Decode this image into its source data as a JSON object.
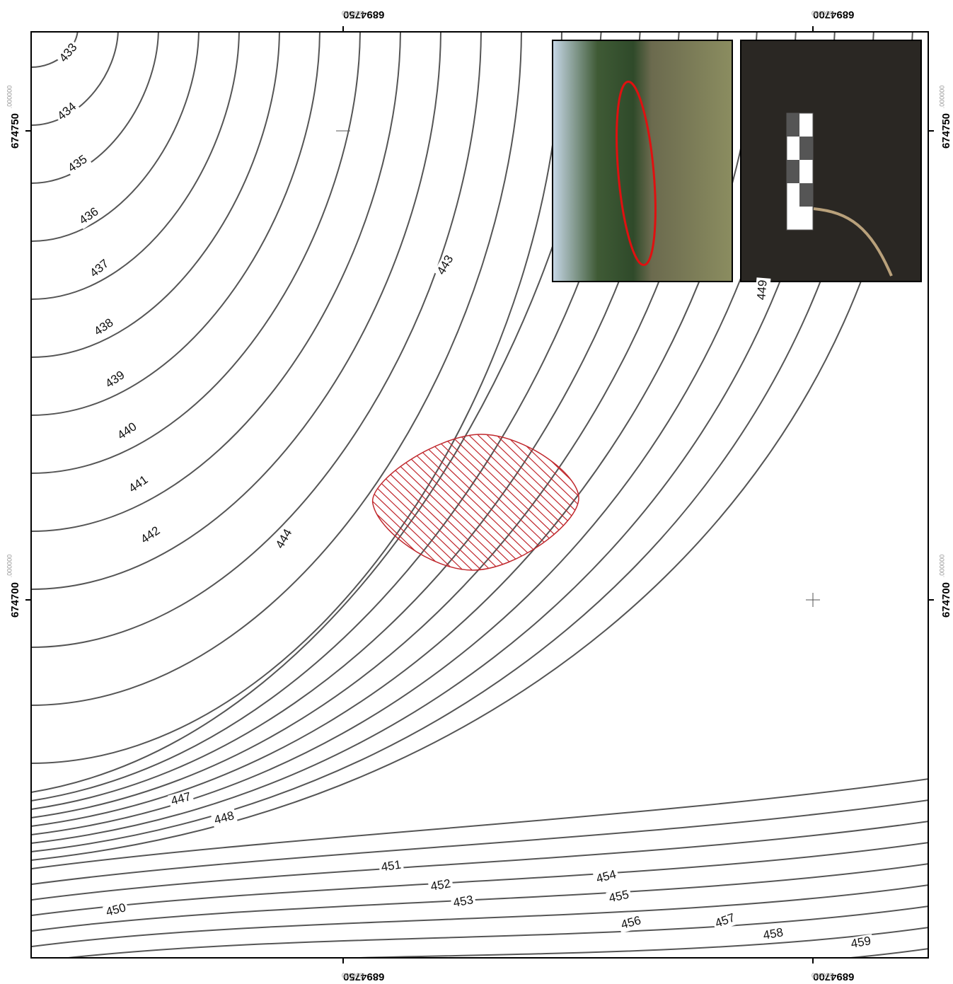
{
  "map": {
    "x_coords": [
      {
        "main": "6894750",
        "decimals": ".000000"
      },
      {
        "main": "6894700",
        "decimals": ".000000"
      }
    ],
    "y_coords": [
      {
        "main": "674750",
        "decimals": ".000000"
      },
      {
        "main": "674700",
        "decimals": ".000000"
      }
    ],
    "contour_labels": [
      "433",
      "434",
      "435",
      "436",
      "437",
      "438",
      "439",
      "440",
      "441",
      "442",
      "443",
      "444",
      "447",
      "448",
      "449",
      "450",
      "451",
      "452",
      "453",
      "454",
      "455",
      "456",
      "457",
      "458",
      "459"
    ]
  }
}
